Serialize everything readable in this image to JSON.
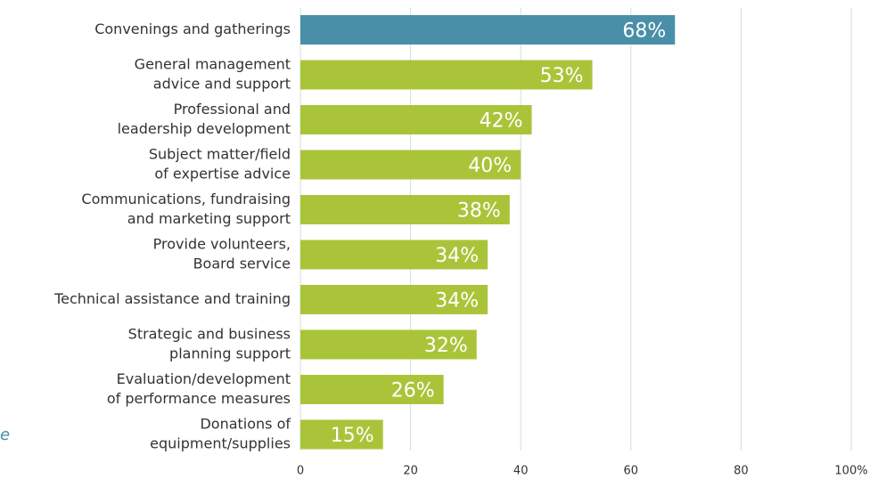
{
  "chart_data": {
    "type": "bar",
    "orientation": "horizontal",
    "categories": [
      [
        "Convenings and gatherings"
      ],
      [
        "General management",
        "advice and support"
      ],
      [
        "Professional and",
        "leadership development"
      ],
      [
        "Subject matter/field",
        "of expertise advice"
      ],
      [
        "Communications, fundraising",
        "and marketing support"
      ],
      [
        "Provide volunteers,",
        "Board service"
      ],
      [
        "Technical assistance and training"
      ],
      [
        "Strategic and business",
        "planning support"
      ],
      [
        "Evaluation/development",
        "of performance measures"
      ],
      [
        "Donations of",
        "equipment/supplies"
      ]
    ],
    "values": [
      68,
      53,
      42,
      40,
      38,
      34,
      34,
      32,
      26,
      15
    ],
    "value_labels": [
      "68%",
      "53%",
      "42%",
      "40%",
      "38%",
      "34%",
      "34%",
      "32%",
      "26%",
      "15%"
    ],
    "colors": [
      "#4a8fa8",
      "#aac43a",
      "#aac43a",
      "#aac43a",
      "#aac43a",
      "#aac43a",
      "#aac43a",
      "#aac43a",
      "#aac43a",
      "#aac43a"
    ],
    "xlim": [
      0,
      100
    ],
    "xticks": [
      0,
      20,
      40,
      60,
      80,
      {
        "value": 100,
        "label": "100%"
      }
    ],
    "grid": true,
    "annotations": [
      "e"
    ]
  }
}
